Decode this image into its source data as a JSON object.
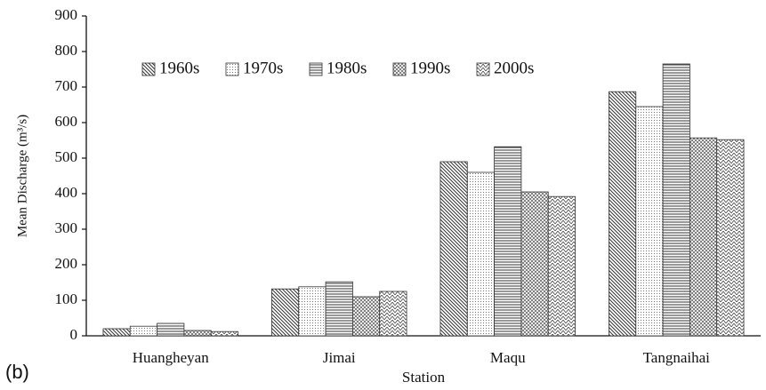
{
  "chart_data": {
    "type": "bar",
    "annotation": "(b)",
    "x_label": "Station",
    "y_label": "Mean Discharge (m³/s)",
    "categories": [
      "Huangheyan",
      "Jimai",
      "Maqu",
      "Tangnaihai"
    ],
    "series": [
      {
        "name": "1960s",
        "color": "#333333",
        "pattern": "diagonal",
        "values": [
          20,
          132,
          490,
          687
        ]
      },
      {
        "name": "1970s",
        "color": "#333333",
        "pattern": "dots",
        "values": [
          27,
          138,
          460,
          645
        ]
      },
      {
        "name": "1980s",
        "color": "#333333",
        "pattern": "horizontal",
        "values": [
          35,
          152,
          532,
          765
        ]
      },
      {
        "name": "1990s",
        "color": "#333333",
        "pattern": "crosshatch",
        "values": [
          15,
          110,
          405,
          557
        ]
      },
      {
        "name": "2000s",
        "color": "#333333",
        "pattern": "zigzag",
        "values": [
          12,
          125,
          392,
          552
        ]
      }
    ],
    "ylim": [
      0,
      900
    ],
    "yticks": [
      0,
      100,
      200,
      300,
      400,
      500,
      600,
      700,
      800,
      900
    ]
  }
}
